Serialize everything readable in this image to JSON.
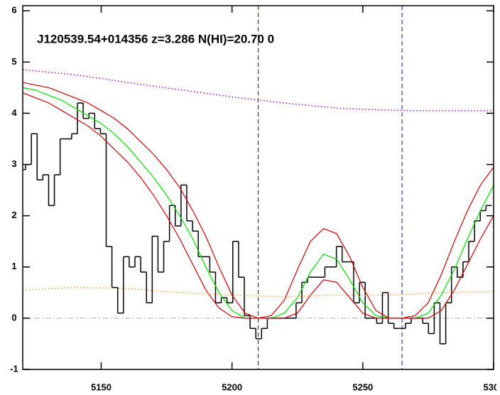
{
  "chart_data": {
    "type": "line",
    "annotation": "J120539.54+014356 z=3.286 N(HI)=20.70 0",
    "xlim": [
      5120,
      5300
    ],
    "xticks": [
      5150,
      5200,
      5250,
      5300
    ],
    "ylim": [
      -1,
      6.1
    ],
    "yticks": [
      -1,
      0,
      1,
      2,
      3,
      4,
      5,
      6
    ],
    "reference_line": 0,
    "reference_line_color": "#aaaaaa",
    "vlines": [
      5210,
      5265
    ],
    "vline_color": "#1010c0",
    "series": [
      {
        "style": "steps",
        "color": "#000000",
        "x": [
          5120,
          5122.2,
          5124.4,
          5126.6,
          5128.8,
          5131,
          5133.2,
          5135.4,
          5137.6,
          5139.8,
          5142,
          5144.2,
          5146.4,
          5148.6,
          5150.8,
          5153,
          5155.2,
          5157.4,
          5159.6,
          5161.8,
          5164,
          5166.2,
          5168.4,
          5170.6,
          5172.8,
          5175,
          5177.2,
          5179.4,
          5181.6,
          5183.8,
          5186,
          5188.2,
          5190.4,
          5192.6,
          5194.8,
          5197,
          5199.2,
          5201.4,
          5203.6,
          5205.8,
          5208,
          5210.2,
          5212.4,
          5214.6,
          5216.8,
          5219,
          5221.2,
          5223.4,
          5225.6,
          5227.8,
          5230,
          5232.2,
          5234.4,
          5236.6,
          5238.8,
          5241,
          5243.2,
          5245.4,
          5247.6,
          5249.8,
          5252,
          5254.2,
          5256.4,
          5258.6,
          5260.8,
          5263,
          5265.2,
          5267.4,
          5269.6,
          5271.8,
          5274,
          5276.2,
          5278.4,
          5280.6,
          5282.8,
          5285,
          5287.2,
          5289.4,
          5291.6,
          5293.8,
          5296,
          5298.2
        ],
        "values": [
          2.9,
          3.0,
          3.6,
          2.7,
          2.8,
          2.2,
          2.8,
          3.5,
          3.5,
          3.6,
          4.2,
          3.9,
          4.0,
          3.7,
          3.6,
          1.4,
          0.6,
          0.1,
          1.2,
          1.0,
          1.2,
          0.9,
          0.3,
          1.6,
          0.9,
          1.5,
          2.2,
          1.8,
          2.6,
          1.9,
          1.7,
          1.2,
          1.2,
          0.9,
          0.3,
          0.4,
          0.3,
          1.5,
          0.8,
          0.05,
          -0.2,
          -0.4,
          -0.2,
          0.0,
          0.0,
          0.0,
          0.0,
          0.0,
          0.3,
          0.7,
          0.8,
          0.8,
          0.8,
          1.0,
          1.0,
          1.4,
          1.1,
          1.1,
          0.3,
          0.7,
          0.0,
          0.0,
          -0.1,
          0.5,
          -0.1,
          -0.2,
          -0.2,
          -0.1,
          0.0,
          0.0,
          -0.1,
          -0.3,
          0.3,
          -0.5,
          0.3,
          1.0,
          0.8,
          1.1,
          1.5,
          1.9,
          2.1,
          2.2
        ]
      },
      {
        "style": "solid",
        "color": "#00dd00",
        "x": [
          5120,
          5125,
          5130,
          5135,
          5140,
          5145,
          5150,
          5155,
          5160,
          5165,
          5170,
          5175,
          5180,
          5185,
          5190,
          5195,
          5200,
          5205,
          5210,
          5215,
          5220,
          5225,
          5230,
          5235,
          5240,
          5245,
          5250,
          5255,
          5260,
          5265,
          5270,
          5275,
          5280,
          5285,
          5290,
          5295,
          5300
        ],
        "values": [
          4.5,
          4.45,
          4.35,
          4.25,
          4.1,
          3.95,
          3.8,
          3.6,
          3.35,
          3.05,
          2.75,
          2.4,
          2.0,
          1.55,
          1.0,
          0.5,
          0.15,
          0.0,
          0.0,
          0.0,
          0.1,
          0.4,
          0.9,
          1.25,
          1.15,
          0.75,
          0.3,
          0.05,
          0.0,
          0.0,
          0.0,
          0.1,
          0.45,
          0.95,
          1.55,
          2.1,
          2.6
        ]
      },
      {
        "style": "solid",
        "color": "#cc0000",
        "x": [
          5120,
          5125,
          5130,
          5135,
          5140,
          5145,
          5150,
          5155,
          5160,
          5165,
          5170,
          5175,
          5180,
          5185,
          5190,
          5195,
          5200,
          5205,
          5210,
          5215,
          5220,
          5225,
          5230,
          5235,
          5240,
          5245,
          5250,
          5255,
          5260,
          5265,
          5270,
          5275,
          5280,
          5285,
          5290,
          5295,
          5300
        ],
        "values": [
          4.6,
          4.55,
          4.5,
          4.4,
          4.3,
          4.2,
          4.05,
          3.9,
          3.7,
          3.45,
          3.2,
          2.9,
          2.55,
          2.1,
          1.6,
          1.0,
          0.45,
          0.1,
          0.0,
          0.05,
          0.35,
          0.95,
          1.5,
          1.75,
          1.65,
          1.2,
          0.6,
          0.15,
          0.0,
          0.0,
          0.05,
          0.3,
          0.85,
          1.5,
          2.1,
          2.6,
          2.95
        ]
      },
      {
        "style": "solid",
        "color": "#cc0000",
        "x": [
          5120,
          5125,
          5130,
          5135,
          5140,
          5145,
          5150,
          5155,
          5160,
          5165,
          5170,
          5175,
          5180,
          5185,
          5190,
          5195,
          5200,
          5205,
          5210,
          5215,
          5220,
          5225,
          5230,
          5235,
          5240,
          5245,
          5250,
          5255,
          5260,
          5265,
          5270,
          5275,
          5280,
          5285,
          5290,
          5295,
          5300
        ],
        "values": [
          4.4,
          4.3,
          4.2,
          4.05,
          3.9,
          3.75,
          3.55,
          3.3,
          3.05,
          2.75,
          2.4,
          2.0,
          1.55,
          1.05,
          0.55,
          0.2,
          0.03,
          0.0,
          0.0,
          0.0,
          0.0,
          0.1,
          0.45,
          0.75,
          0.7,
          0.4,
          0.1,
          0.0,
          0.0,
          0.0,
          0.0,
          0.0,
          0.15,
          0.55,
          1.05,
          1.55,
          2.0
        ]
      },
      {
        "style": "dotted",
        "color": "#9900cc",
        "x": [
          5120,
          5130,
          5140,
          5150,
          5160,
          5170,
          5180,
          5190,
          5200,
          5210,
          5220,
          5230,
          5240,
          5250,
          5260,
          5270,
          5280,
          5290,
          5300
        ],
        "values": [
          4.85,
          4.8,
          4.75,
          4.68,
          4.6,
          4.53,
          4.46,
          4.39,
          4.32,
          4.26,
          4.2,
          4.15,
          4.1,
          4.08,
          4.06,
          4.05,
          4.05,
          4.05,
          4.05
        ]
      },
      {
        "style": "dotted",
        "color": "#ff9933",
        "x": [
          5120,
          5140,
          5160,
          5180,
          5200,
          5220,
          5240,
          5260,
          5280,
          5300
        ],
        "values": [
          0.55,
          0.6,
          0.58,
          0.5,
          0.45,
          0.42,
          0.45,
          0.45,
          0.5,
          0.52
        ]
      }
    ]
  }
}
